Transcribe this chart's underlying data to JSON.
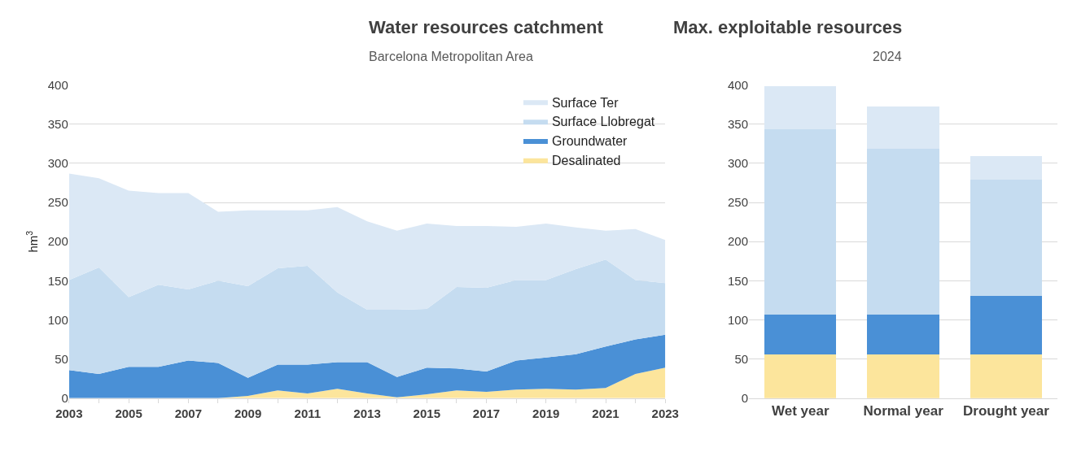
{
  "chart_data": [
    {
      "type": "area",
      "title": "Water resources catchment",
      "subtitle": "Barcelona Metropolitan Area",
      "ylabel": "hm$^{3}$",
      "stacked": true,
      "grid": "y",
      "legend": "top right",
      "x": [
        2003,
        2004,
        2005,
        2006,
        2007,
        2008,
        2009,
        2010,
        2011,
        2012,
        2013,
        2014,
        2015,
        2016,
        2017,
        2018,
        2019,
        2020,
        2021,
        2022,
        2023
      ],
      "xlim": [
        2003,
        2023
      ],
      "xticks": [
        2003,
        {
          "value": 2004,
          "label": null
        },
        2005,
        {
          "value": 2006,
          "label": null
        },
        2007,
        {
          "value": 2008,
          "label": null
        },
        2009,
        {
          "value": 2010,
          "label": null
        },
        2011,
        {
          "value": 2012,
          "label": null
        },
        2013,
        {
          "value": 2014,
          "label": null
        },
        2015,
        {
          "value": 2016,
          "label": null
        },
        2017,
        {
          "value": 2018,
          "label": null
        },
        2019,
        {
          "value": 2020,
          "label": null
        },
        2021,
        {
          "value": 2022,
          "label": null
        },
        2023
      ],
      "ylim": [
        0,
        400
      ],
      "yticks": [
        0,
        50,
        100,
        150,
        200,
        250,
        300,
        350,
        400
      ],
      "series": [
        {
          "name": "Desalinated",
          "color": "#fce59c",
          "values": [
            0,
            0,
            0,
            0,
            0,
            0,
            3,
            10,
            6,
            12,
            6,
            1,
            5,
            10,
            8,
            11,
            12,
            11,
            13,
            31,
            39
          ]
        },
        {
          "name": "Groundwater",
          "color": "#4a90d6",
          "values": [
            36,
            31,
            40,
            40,
            48,
            45,
            23,
            33,
            37,
            34,
            40,
            26,
            34,
            28,
            26,
            37,
            40,
            45,
            53,
            44,
            42
          ]
        },
        {
          "name": "Surface Llobregat",
          "color": "#c5dcf0",
          "values": [
            115,
            136,
            89,
            105,
            91,
            105,
            117,
            123,
            126,
            89,
            67,
            86,
            75,
            104,
            107,
            103,
            99,
            109,
            111,
            76,
            66
          ]
        },
        {
          "name": "Surface Ter",
          "color": "#dbe8f5",
          "values": [
            136,
            114,
            136,
            117,
            123,
            88,
            97,
            74,
            71,
            109,
            113,
            101,
            109,
            78,
            79,
            68,
            72,
            53,
            37,
            65,
            55
          ]
        }
      ]
    },
    {
      "type": "bar",
      "title": "Max. exploitable resources",
      "subtitle": "2024",
      "stacked": true,
      "grid": "y",
      "categories": [
        "Wet year",
        "Normal year",
        "Drought year"
      ],
      "ylim": [
        0,
        400
      ],
      "yticks": [
        0,
        50,
        100,
        150,
        200,
        250,
        300,
        350,
        400
      ],
      "series": [
        {
          "color": "#fce59c",
          "values": [
            56,
            56,
            56
          ]
        },
        {
          "color": "#4a90d6",
          "values": [
            51,
            51,
            75
          ]
        },
        {
          "color": "#c5dcf0",
          "values": [
            237,
            212,
            148
          ]
        },
        {
          "color": "#dbe8f5",
          "values": [
            55,
            54,
            30
          ]
        }
      ]
    }
  ]
}
